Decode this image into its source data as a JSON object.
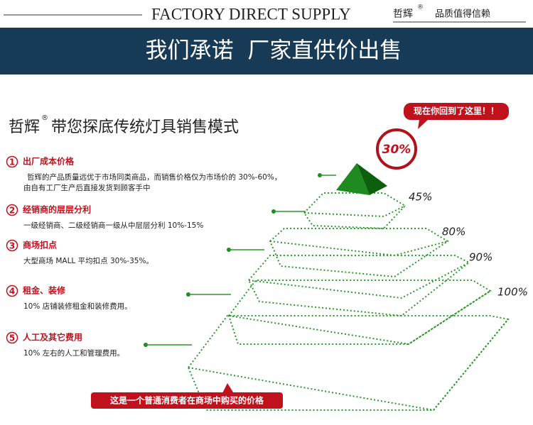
{
  "header": {
    "title": "FACTORY DIRECT SUPPLY",
    "brand": "哲辉",
    "registered": "®",
    "slogan": "品质值得信赖"
  },
  "banner": {
    "text": "我们承诺  厂家直供价出售"
  },
  "subtitle": {
    "brand": "哲辉",
    "registered": "®",
    "text": "带您探底传统灯具销售模式"
  },
  "callout": "现在你回到了这里！！",
  "pyramid": {
    "levels": [
      "30%",
      "45%",
      "80%",
      "90%",
      "100%"
    ]
  },
  "items": [
    {
      "number": "1",
      "title": "出厂成本价格",
      "description": [
        "哲辉的产品质量远优于市场同类商品，而销售价格仅为市场价的 30%-60%，",
        "由自有工厂生产后直接发货到顾客手中"
      ]
    },
    {
      "number": "2",
      "title": "经销商的层层分利",
      "description": [
        "一级经销商、二级经销商一级从中层层分利 10%-15%"
      ]
    },
    {
      "number": "3",
      "title": "商场扣点",
      "description": [
        "大型商场 MALL 平均扣点 30%-35%。"
      ]
    },
    {
      "number": "4",
      "title": "租金、装修",
      "description": [
        "10% 店铺装修租金和装修费用。"
      ]
    },
    {
      "number": "5",
      "title": "人工及其它费用",
      "description": [
        "10% 左右的人工和管理费用。"
      ]
    }
  ],
  "footer": "这是一个普通消费者在商场中购买的价格"
}
